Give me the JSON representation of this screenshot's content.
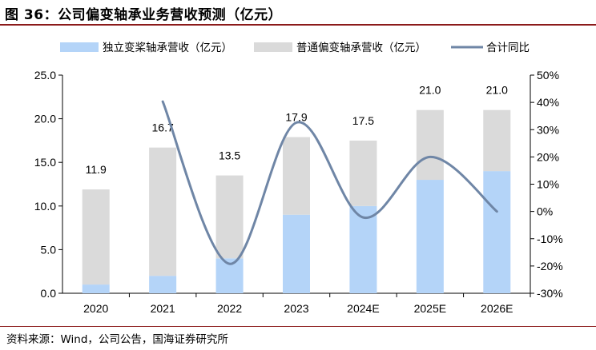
{
  "figure": {
    "title": "图 36：公司偏变轴承业务营收预测（亿元）",
    "source": "资料来源：Wind，公司公告，国海证券研究所"
  },
  "chart_data": {
    "type": "bar",
    "stacked": true,
    "categories": [
      "2020",
      "2021",
      "2022",
      "2023",
      "2024E",
      "2025E",
      "2026E"
    ],
    "series": [
      {
        "name": "独立变桨轴承营收（亿元）",
        "type": "bar",
        "axis": "left",
        "color": "#b4d4f8",
        "values": [
          1.0,
          2.0,
          4.0,
          9.0,
          10.0,
          13.0,
          14.0
        ]
      },
      {
        "name": "普通偏变轴承营收（亿元）",
        "type": "bar",
        "axis": "left",
        "color": "#dadada",
        "values": [
          10.9,
          14.7,
          9.5,
          8.9,
          7.5,
          8.0,
          7.0
        ]
      },
      {
        "name": "合计同比",
        "type": "line",
        "axis": "right",
        "color": "#6f86a6",
        "values": [
          null,
          40.3,
          -19.2,
          32.6,
          -2.2,
          20.0,
          0.0
        ]
      }
    ],
    "totals": [
      11.9,
      16.7,
      13.5,
      17.9,
      17.5,
      21.0,
      21.0
    ],
    "total_labels": [
      "11.9",
      "16.7",
      "13.5",
      "17.9",
      "17.5",
      "21.0",
      "21.0"
    ],
    "y_left": {
      "min": 0,
      "max": 25,
      "ticks": [
        "0.0",
        "5.0",
        "10.0",
        "15.0",
        "20.0",
        "25.0"
      ]
    },
    "y_right": {
      "min": -30,
      "max": 50,
      "ticks": [
        "-30%",
        "-20%",
        "-10%",
        "0%",
        "10%",
        "20%",
        "30%",
        "40%",
        "50%"
      ]
    },
    "xlabel": "",
    "ylabel": "",
    "grid": false,
    "legend_position": "top"
  }
}
